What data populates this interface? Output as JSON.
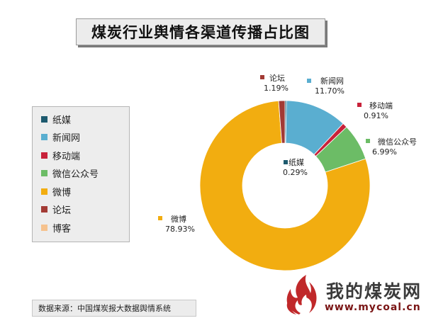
{
  "chart_data": {
    "type": "pie",
    "title": "煤炭行业舆情各渠道传播占比图",
    "donut": true,
    "legend_position": "left",
    "slices": [
      {
        "name": "纸媒",
        "value": 0.29,
        "label": "0.29%",
        "color": "#1d5a6e"
      },
      {
        "name": "新闻网",
        "value": 11.7,
        "label": "11.70%",
        "color": "#5aaed0"
      },
      {
        "name": "移动端",
        "value": 0.91,
        "label": "0.91%",
        "color": "#c8223a"
      },
      {
        "name": "微信公众号",
        "value": 6.99,
        "label": "6.99%",
        "color": "#6cbc66"
      },
      {
        "name": "微博",
        "value": 78.93,
        "label": "78.93%",
        "color": "#f2ad10"
      },
      {
        "name": "论坛",
        "value": 1.19,
        "label": "1.19%",
        "color": "#a23a34"
      }
    ],
    "legend": [
      {
        "name": "纸媒",
        "color": "#1d5a6e"
      },
      {
        "name": "新闻网",
        "color": "#5aaed0"
      },
      {
        "name": "移动端",
        "color": "#c8223a"
      },
      {
        "name": "微信公众号",
        "color": "#6cbc66"
      },
      {
        "name": "微博",
        "color": "#f2ad10"
      },
      {
        "name": "论坛",
        "color": "#a23a34"
      },
      {
        "name": "博客",
        "color": "#f6c28e"
      }
    ]
  },
  "source_note": "数据来源：中国煤炭报大数据舆情系统",
  "logo": {
    "text": "我的煤炭网",
    "url": "www.mycoal.cn"
  }
}
